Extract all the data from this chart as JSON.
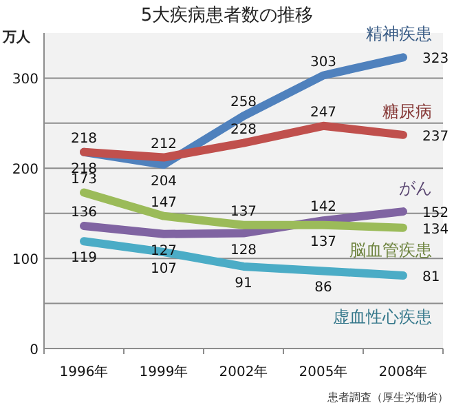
{
  "chart_data": {
    "type": "line",
    "title": "5大疾病患者数の推移",
    "ylabel": "万人",
    "categories": [
      "1996年",
      "1999年",
      "2002年",
      "2005年",
      "2008年"
    ],
    "series": [
      {
        "name": "精神疾患",
        "color": "#4f81bd",
        "values": [
          218,
          204,
          258,
          303,
          323
        ]
      },
      {
        "name": "糖尿病",
        "color": "#c0504d",
        "values": [
          218,
          212,
          228,
          247,
          237
        ]
      },
      {
        "name": "がん",
        "color": "#8064a2",
        "values": [
          136,
          127,
          128,
          142,
          152
        ]
      },
      {
        "name": "脳血管疾患",
        "color": "#9bbb59",
        "values": [
          173,
          147,
          137,
          137,
          134
        ]
      },
      {
        "name": "虚血性心疾患",
        "color": "#4bacc6",
        "values": [
          119,
          107,
          91,
          86,
          81
        ]
      }
    ],
    "ylim": [
      0,
      350
    ],
    "yticks": [
      0,
      {
        "value": 50,
        "label": null
      },
      100,
      {
        "value": 150,
        "label": null
      },
      200,
      {
        "value": 250,
        "label": null
      },
      300
    ],
    "grid": "y",
    "data_labels": true,
    "marker": "none",
    "line_style": "solid",
    "annotations": [
      "患者調査（厚生労働省）"
    ]
  }
}
